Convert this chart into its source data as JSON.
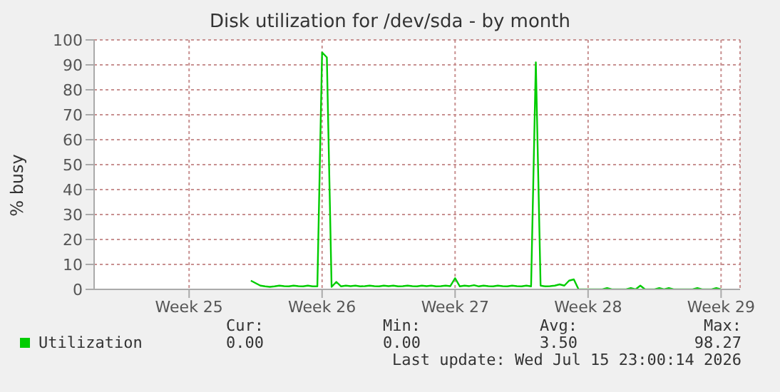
{
  "chart_data": {
    "type": "line",
    "title": "Disk utilization for /dev/sda - by month",
    "ylabel": "% busy",
    "categories": [
      null,
      null,
      null,
      null,
      null,
      null,
      null,
      null,
      null,
      null,
      null,
      null,
      null,
      null,
      null,
      null,
      null,
      null,
      null,
      null,
      "Week 25",
      null,
      null,
      null,
      null,
      null,
      null,
      null,
      null,
      null,
      null,
      null,
      null,
      null,
      null,
      null,
      null,
      null,
      null,
      null,
      null,
      null,
      null,
      null,
      null,
      null,
      null,
      null,
      "Week 26",
      null,
      null,
      null,
      null,
      null,
      null,
      null,
      null,
      null,
      null,
      null,
      null,
      null,
      null,
      null,
      null,
      null,
      null,
      null,
      null,
      null,
      null,
      null,
      null,
      null,
      null,
      null,
      "Week 27",
      null,
      null,
      null,
      null,
      null,
      null,
      null,
      null,
      null,
      null,
      null,
      null,
      null,
      null,
      null,
      null,
      null,
      null,
      null,
      null,
      null,
      null,
      null,
      null,
      null,
      null,
      null,
      "Week 28",
      null,
      null,
      null,
      null,
      null,
      null,
      null,
      null,
      null,
      null,
      null,
      null,
      null,
      null,
      null,
      null,
      null,
      null,
      null,
      null,
      null,
      null,
      null,
      null,
      null,
      null,
      null,
      "Week 29",
      null,
      null,
      null,
      null
    ],
    "ylim": [
      0,
      100
    ],
    "yticks": [
      0,
      10,
      20,
      30,
      40,
      50,
      60,
      70,
      80,
      90,
      100
    ],
    "grid": true,
    "legend": "bottom left",
    "marker": "none",
    "line_style": "solid",
    "series": [
      {
        "name": "Utilization",
        "color": "#00cc00",
        "values": [
          null,
          null,
          null,
          null,
          null,
          null,
          null,
          null,
          null,
          null,
          null,
          null,
          null,
          null,
          null,
          null,
          null,
          null,
          null,
          null,
          null,
          null,
          null,
          null,
          null,
          null,
          null,
          null,
          null,
          null,
          null,
          null,
          null,
          3.5,
          2.5,
          1.5,
          1.2,
          1,
          1.2,
          1.5,
          1.3,
          1.2,
          1.5,
          1.3,
          1.2,
          1.5,
          1.2,
          1.2,
          95,
          93,
          1,
          3,
          1.2,
          1.5,
          1.3,
          1.5,
          1.2,
          1.3,
          1.5,
          1.3,
          1.2,
          1.5,
          1.3,
          1.5,
          1.2,
          1.3,
          1.5,
          1.3,
          1.2,
          1.5,
          1.3,
          1.5,
          1.2,
          1.3,
          1.5,
          1.3,
          4.5,
          1.2,
          1.5,
          1.3,
          1.7,
          1.2,
          1.5,
          1.3,
          1.2,
          1.5,
          1.3,
          1.2,
          1.5,
          1.3,
          1.2,
          1.5,
          1.2,
          91,
          1.5,
          1.2,
          1.3,
          1.5,
          2,
          1.5,
          3.5,
          4,
          0,
          0,
          0,
          0,
          0,
          0,
          0.5,
          0,
          0,
          0,
          0,
          0.5,
          0,
          1.5,
          0,
          0,
          0,
          0.5,
          0,
          0.5,
          0,
          0,
          0,
          0,
          0,
          0.5,
          0,
          0,
          0,
          0.5,
          0,
          null,
          null,
          null,
          null
        ]
      }
    ],
    "annotations": [
      "Cur:",
      "Min:",
      "Avg:",
      "Max:",
      "0.00",
      "0.00",
      "3.50",
      "98.27",
      "Last update: Wed Jul 15 23:00:14 2026"
    ]
  }
}
